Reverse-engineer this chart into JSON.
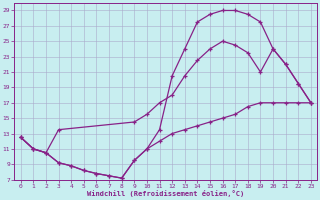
{
  "background_color": "#c8eef0",
  "grid_color": "#aaaacc",
  "line_color": "#882288",
  "xlabel": "Windchill (Refroidissement éolien,°C)",
  "xlim": [
    -0.5,
    23.5
  ],
  "ylim": [
    7,
    30
  ],
  "yticks": [
    7,
    9,
    11,
    13,
    15,
    17,
    19,
    21,
    23,
    25,
    27,
    29
  ],
  "xticks": [
    0,
    1,
    2,
    3,
    4,
    5,
    6,
    7,
    8,
    9,
    10,
    11,
    12,
    13,
    14,
    15,
    16,
    17,
    18,
    19,
    20,
    21,
    22,
    23
  ],
  "upper_x": [
    0,
    1,
    2,
    3,
    4,
    5,
    6,
    7,
    8,
    9,
    10,
    11,
    12,
    13,
    14,
    15,
    16,
    17,
    18,
    19,
    20,
    21,
    22,
    23
  ],
  "upper_y": [
    12.5,
    11.0,
    10.5,
    9.2,
    8.8,
    8.2,
    7.8,
    7.5,
    7.2,
    9.5,
    11.0,
    13.5,
    20.5,
    24.0,
    27.5,
    28.5,
    29.0,
    29.0,
    28.5,
    27.5,
    24.0,
    22.0,
    19.5,
    17.0
  ],
  "middle_x": [
    0,
    1,
    2,
    3,
    9,
    10,
    11,
    12,
    13,
    14,
    15,
    16,
    17,
    18,
    19,
    20,
    21,
    22,
    23
  ],
  "middle_y": [
    12.5,
    11.0,
    10.5,
    13.5,
    14.5,
    15.5,
    17.0,
    18.0,
    20.5,
    22.5,
    24.0,
    25.0,
    24.5,
    23.5,
    21.0,
    24.0,
    22.0,
    19.5,
    17.0
  ],
  "lower_x": [
    0,
    1,
    2,
    3,
    4,
    5,
    6,
    7,
    8,
    9,
    10,
    11,
    12,
    13,
    14,
    15,
    16,
    17,
    18,
    19,
    20,
    21,
    22,
    23
  ],
  "lower_y": [
    12.5,
    11.0,
    10.5,
    9.2,
    8.8,
    8.2,
    7.8,
    7.5,
    7.2,
    9.5,
    11.0,
    12.0,
    13.0,
    13.5,
    14.0,
    14.5,
    15.0,
    15.5,
    16.5,
    17.0,
    17.0,
    17.0,
    17.0,
    17.0
  ]
}
